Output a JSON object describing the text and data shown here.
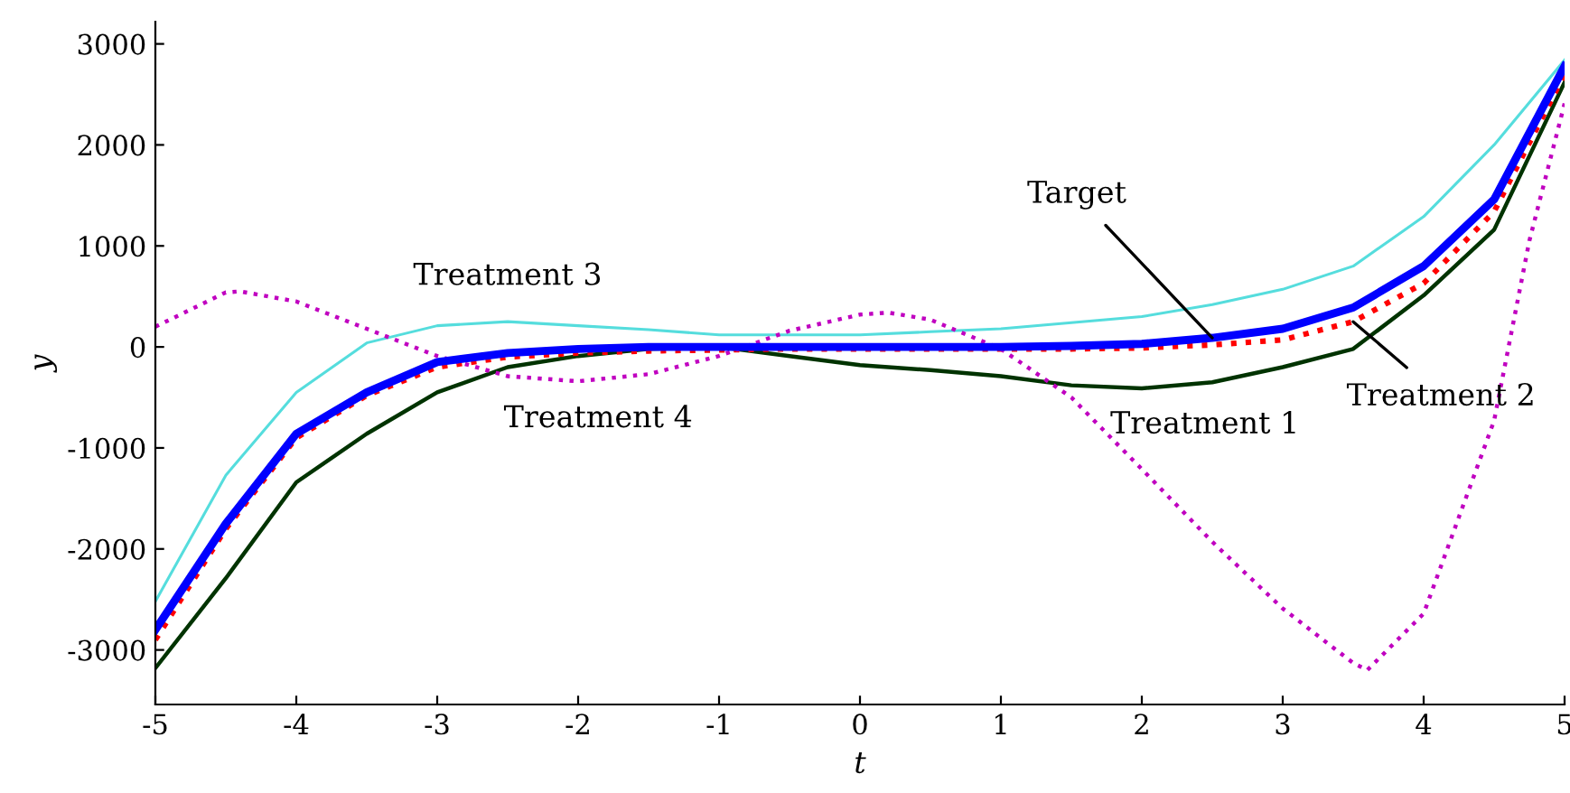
{
  "chart_data": {
    "type": "line",
    "xlabel": "t",
    "ylabel": "y",
    "x": [
      -5,
      -4.5,
      -4,
      -3.5,
      -3,
      -2.5,
      -2,
      -1.5,
      -1,
      -0.5,
      0,
      0.5,
      1,
      1.5,
      2,
      2.5,
      3,
      3.5,
      4,
      4.5,
      5
    ],
    "xlim": [
      -5,
      5
    ],
    "xticks": [
      -5,
      -4,
      -3,
      -2,
      -1,
      0,
      1,
      2,
      3,
      4,
      5
    ],
    "ylim": [
      -3540,
      3220
    ],
    "yticks": [
      -3000,
      -2000,
      -1000,
      0,
      1000,
      2000,
      3000
    ],
    "grid": false,
    "legend": false,
    "marker": "none",
    "series": [
      {
        "color": "#003300",
        "line_style": "solid",
        "values": [
          -3180,
          -2290,
          -1340,
          -860,
          -450,
          -200,
          -90,
          -20,
          0,
          -90,
          -180,
          -230,
          -290,
          -380,
          -410,
          -350,
          -200,
          -20,
          510,
          1160,
          2620
        ]
      },
      {
        "color": "#ff0000",
        "line_style": "dotted",
        "values": [
          -2900,
          -1800,
          -900,
          -480,
          -200,
          -100,
          -60,
          -40,
          -30,
          -20,
          -20,
          -20,
          -20,
          -20,
          -10,
          20,
          70,
          250,
          630,
          1340,
          2700
        ]
      },
      {
        "color": "#55dddd",
        "line_style": "solid",
        "values": [
          -2520,
          -1270,
          -450,
          40,
          210,
          250,
          210,
          170,
          120,
          120,
          120,
          150,
          180,
          240,
          300,
          420,
          570,
          800,
          1290,
          2000,
          2840
        ]
      },
      {
        "color": "#c000c0",
        "line_style": "dotted",
        "x": [
          -5,
          -4.5,
          -4.4,
          -4,
          -3.5,
          -3,
          -2.5,
          -2,
          -1.5,
          -1,
          -0.5,
          0,
          0.2,
          0.5,
          1,
          1.5,
          2,
          2.5,
          3,
          3.5,
          3.6,
          4,
          4.5,
          4.75,
          5
        ],
        "values": [
          200,
          540,
          550,
          450,
          180,
          -90,
          -290,
          -340,
          -270,
          -90,
          160,
          320,
          340,
          270,
          -20,
          -500,
          -1210,
          -1930,
          -2590,
          -3130,
          -3200,
          -2640,
          -730,
          1050,
          2410
        ]
      },
      {
        "color": "#0000ff",
        "line_style": "solid",
        "values": [
          -2800,
          -1750,
          -860,
          -450,
          -150,
          -60,
          -20,
          0,
          0,
          0,
          0,
          0,
          0,
          10,
          30,
          90,
          180,
          390,
          800,
          1460,
          2780
        ]
      }
    ],
    "annotations": [
      {
        "text": "Target",
        "x": 2.5,
        "y": 90
      },
      {
        "text": "Treatment 2",
        "x": 3.5,
        "y": 250
      },
      {
        "text": "Treatment 1",
        "x": 2.5,
        "y": -350
      },
      {
        "text": "Treatment 3",
        "x": -2.5,
        "y": 250
      },
      {
        "text": "Treatment 4",
        "x": -2,
        "y": -340
      }
    ]
  }
}
